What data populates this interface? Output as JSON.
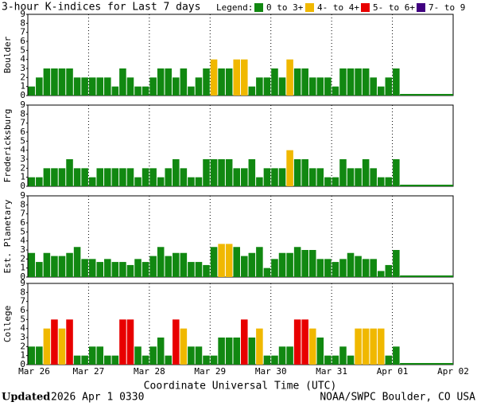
{
  "title": "3-hour K-indices for Last 7 days",
  "legend_title": "Legend:",
  "legend": [
    {
      "label": "0 to 3+",
      "color": "#118811"
    },
    {
      "label": "4- to 4+",
      "color": "#f0b800"
    },
    {
      "label": "5- to 6+",
      "color": "#e80000"
    },
    {
      "label": "7- to 9",
      "color": "#400080"
    }
  ],
  "x_label": "Coordinate Universal Time (UTC)",
  "x_ticks": [
    "Mar 26",
    "Mar 27",
    "Mar 28",
    "Mar 29",
    "Mar 30",
    "Mar 31",
    "Apr 01",
    "Apr 02"
  ],
  "footer": {
    "updated": "Updated",
    "date": "2026 Apr  1 0330",
    "source": "NOAA/SWPC Boulder, CO USA"
  },
  "chart_data": [
    {
      "type": "bar",
      "y_label": "Boulder",
      "ylim": [
        0,
        9
      ],
      "yticks": [
        0,
        1,
        2,
        3,
        4,
        5,
        6,
        7,
        8,
        9
      ],
      "values": [
        1,
        2,
        3,
        3,
        3,
        3,
        2,
        2,
        2,
        2,
        2,
        1,
        3,
        2,
        1,
        1,
        2,
        3,
        3,
        2,
        3,
        1,
        2,
        3,
        4,
        3,
        3,
        4,
        4,
        1,
        2,
        2,
        3,
        2,
        4,
        3,
        3,
        2,
        2,
        2,
        1,
        3,
        3,
        3,
        3,
        2,
        1,
        2,
        3
      ],
      "colors": [
        "#118811",
        "#118811",
        "#118811",
        "#118811",
        "#118811",
        "#118811",
        "#118811",
        "#118811",
        "#118811",
        "#118811",
        "#118811",
        "#118811",
        "#118811",
        "#118811",
        "#118811",
        "#118811",
        "#118811",
        "#118811",
        "#118811",
        "#118811",
        "#118811",
        "#118811",
        "#118811",
        "#118811",
        "#f0b800",
        "#118811",
        "#118811",
        "#f0b800",
        "#f0b800",
        "#118811",
        "#118811",
        "#118811",
        "#118811",
        "#118811",
        "#f0b800",
        "#118811",
        "#118811",
        "#118811",
        "#118811",
        "#118811",
        "#118811",
        "#118811",
        "#118811",
        "#118811",
        "#118811",
        "#118811",
        "#118811",
        "#118811",
        "#118811"
      ]
    },
    {
      "type": "bar",
      "y_label": "Fredericksburg",
      "ylim": [
        0,
        9
      ],
      "yticks": [
        0,
        1,
        2,
        3,
        4,
        5,
        6,
        7,
        8,
        9
      ],
      "values": [
        1,
        1,
        2,
        2,
        2,
        3,
        2,
        2,
        1,
        2,
        2,
        2,
        2,
        2,
        1,
        2,
        2,
        1,
        2,
        3,
        2,
        1,
        1,
        3,
        3,
        3,
        3,
        2,
        2,
        3,
        1,
        2,
        2,
        2,
        4,
        3,
        3,
        2,
        2,
        1,
        1,
        3,
        2,
        2,
        3,
        2,
        1,
        1,
        3
      ],
      "colors": [
        "#118811",
        "#118811",
        "#118811",
        "#118811",
        "#118811",
        "#118811",
        "#118811",
        "#118811",
        "#118811",
        "#118811",
        "#118811",
        "#118811",
        "#118811",
        "#118811",
        "#118811",
        "#118811",
        "#118811",
        "#118811",
        "#118811",
        "#118811",
        "#118811",
        "#118811",
        "#118811",
        "#118811",
        "#118811",
        "#118811",
        "#118811",
        "#118811",
        "#118811",
        "#118811",
        "#118811",
        "#118811",
        "#118811",
        "#118811",
        "#f0b800",
        "#118811",
        "#118811",
        "#118811",
        "#118811",
        "#118811",
        "#118811",
        "#118811",
        "#118811",
        "#118811",
        "#118811",
        "#118811",
        "#118811",
        "#118811",
        "#118811"
      ]
    },
    {
      "type": "bar",
      "y_label": "Est. Planetary",
      "ylim": [
        0,
        9
      ],
      "yticks": [
        0,
        1,
        2,
        3,
        4,
        5,
        6,
        7,
        8,
        9
      ],
      "values": [
        2.67,
        1.67,
        2.67,
        2.33,
        2.33,
        2.67,
        3.33,
        2,
        2,
        1.67,
        2,
        1.67,
        1.67,
        1.33,
        2,
        1.67,
        2.33,
        3.33,
        2.33,
        2.67,
        2.67,
        1.67,
        1.67,
        1.33,
        3.33,
        3.67,
        3.67,
        3.33,
        2.33,
        2.67,
        3.33,
        1,
        2,
        2.67,
        2.67,
        3.33,
        3,
        3,
        2,
        2,
        1.67,
        2,
        2.67,
        2.33,
        2,
        2,
        0.67,
        1.33,
        3
      ],
      "colors": [
        "#118811",
        "#118811",
        "#118811",
        "#118811",
        "#118811",
        "#118811",
        "#118811",
        "#118811",
        "#118811",
        "#118811",
        "#118811",
        "#118811",
        "#118811",
        "#118811",
        "#118811",
        "#118811",
        "#118811",
        "#118811",
        "#118811",
        "#118811",
        "#118811",
        "#118811",
        "#118811",
        "#118811",
        "#118811",
        "#f0b800",
        "#f0b800",
        "#118811",
        "#118811",
        "#118811",
        "#118811",
        "#118811",
        "#118811",
        "#118811",
        "#118811",
        "#118811",
        "#118811",
        "#118811",
        "#118811",
        "#118811",
        "#118811",
        "#118811",
        "#118811",
        "#118811",
        "#118811",
        "#118811",
        "#118811",
        "#118811",
        "#118811"
      ]
    },
    {
      "type": "bar",
      "y_label": "College",
      "ylim": [
        0,
        9
      ],
      "yticks": [
        0,
        1,
        2,
        3,
        4,
        5,
        6,
        7,
        8,
        9
      ],
      "values": [
        2,
        2,
        4,
        5,
        4,
        5,
        1,
        1,
        2,
        2,
        1,
        1,
        5,
        5,
        2,
        1,
        2,
        3,
        1,
        5,
        4,
        2,
        2,
        1,
        1,
        3,
        3,
        3,
        5,
        3,
        4,
        1,
        1,
        2,
        2,
        5,
        5,
        4,
        3,
        1,
        1,
        2,
        1,
        4,
        4,
        4,
        4,
        1,
        2
      ],
      "colors": [
        "#118811",
        "#118811",
        "#f0b800",
        "#e80000",
        "#f0b800",
        "#e80000",
        "#118811",
        "#118811",
        "#118811",
        "#118811",
        "#118811",
        "#118811",
        "#e80000",
        "#e80000",
        "#118811",
        "#118811",
        "#118811",
        "#118811",
        "#118811",
        "#e80000",
        "#f0b800",
        "#118811",
        "#118811",
        "#118811",
        "#118811",
        "#118811",
        "#118811",
        "#118811",
        "#e80000",
        "#118811",
        "#f0b800",
        "#118811",
        "#118811",
        "#118811",
        "#118811",
        "#e80000",
        "#e80000",
        "#f0b800",
        "#118811",
        "#118811",
        "#118811",
        "#118811",
        "#118811",
        "#f0b800",
        "#f0b800",
        "#f0b800",
        "#f0b800",
        "#118811",
        "#118811"
      ]
    }
  ]
}
